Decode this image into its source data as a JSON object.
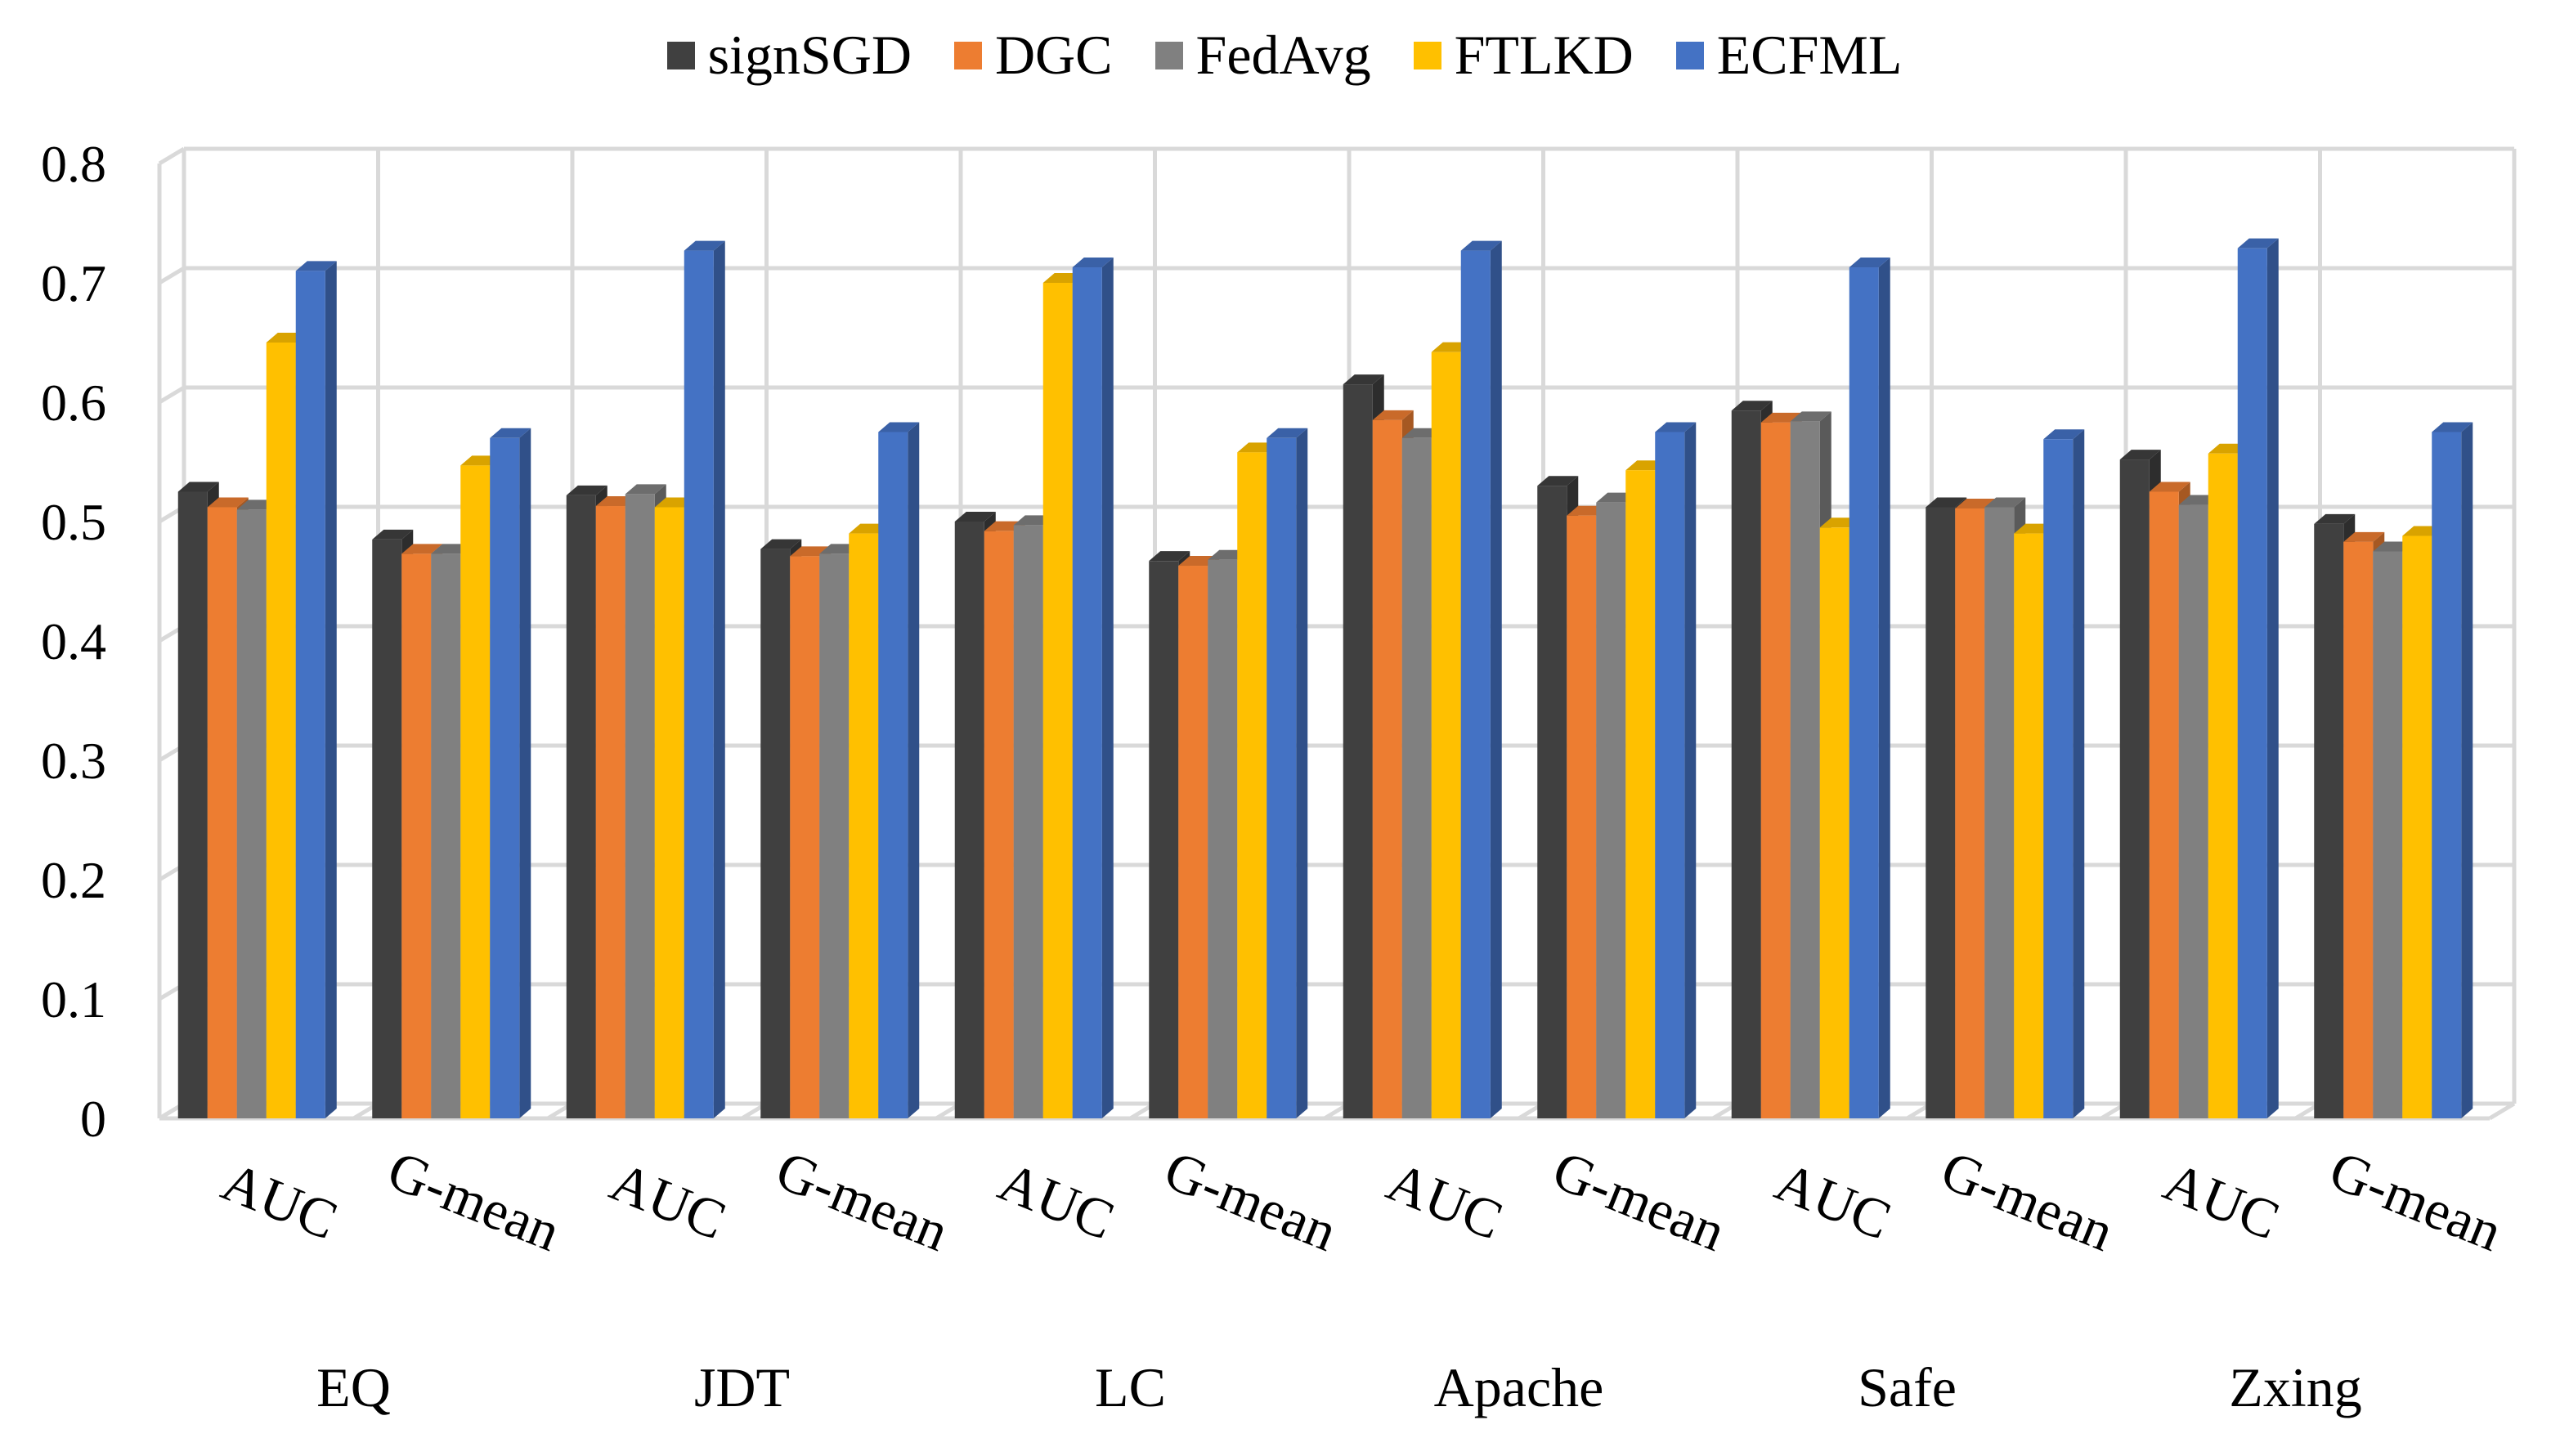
{
  "chart_data": {
    "type": "bar",
    "title": "",
    "xlabel": "",
    "ylabel": "",
    "ylim": [
      0,
      0.8
    ],
    "yticks": [
      "0",
      "0.1",
      "0.2",
      "0.3",
      "0.4",
      "0.5",
      "0.6",
      "0.7",
      "0.8"
    ],
    "grid": true,
    "legend_position": "top",
    "groups": [
      "EQ",
      "JDT",
      "LC",
      "Apache",
      "Safe",
      "Zxing"
    ],
    "metrics": [
      "AUC",
      "G-mean"
    ],
    "categories": [
      "AUC",
      "G-mean",
      "AUC",
      "G-mean",
      "AUC",
      "G-mean",
      "AUC",
      "G-mean",
      "AUC",
      "G-mean",
      "AUC",
      "G-mean"
    ],
    "series": [
      {
        "name": "signSGD",
        "color": "#404040",
        "values": [
          0.525,
          0.485,
          0.522,
          0.477,
          0.5,
          0.467,
          0.615,
          0.53,
          0.593,
          0.512,
          0.552,
          0.498
        ]
      },
      {
        "name": "DGC",
        "color": "#ED7D31",
        "values": [
          0.512,
          0.473,
          0.513,
          0.471,
          0.492,
          0.463,
          0.585,
          0.505,
          0.583,
          0.511,
          0.525,
          0.483
        ]
      },
      {
        "name": "FedAvg",
        "color": "#808080",
        "values": [
          0.51,
          0.473,
          0.523,
          0.473,
          0.497,
          0.468,
          0.57,
          0.516,
          0.584,
          0.512,
          0.514,
          0.475
        ]
      },
      {
        "name": "FTLKD",
        "color": "#FFC000",
        "values": [
          0.65,
          0.547,
          0.512,
          0.49,
          0.7,
          0.558,
          0.642,
          0.543,
          0.495,
          0.49,
          0.557,
          0.488
        ]
      },
      {
        "name": "ECFML",
        "color": "#4472C4",
        "values": [
          0.71,
          0.57,
          0.727,
          0.575,
          0.713,
          0.57,
          0.727,
          0.575,
          0.713,
          0.569,
          0.729,
          0.575
        ]
      }
    ]
  }
}
